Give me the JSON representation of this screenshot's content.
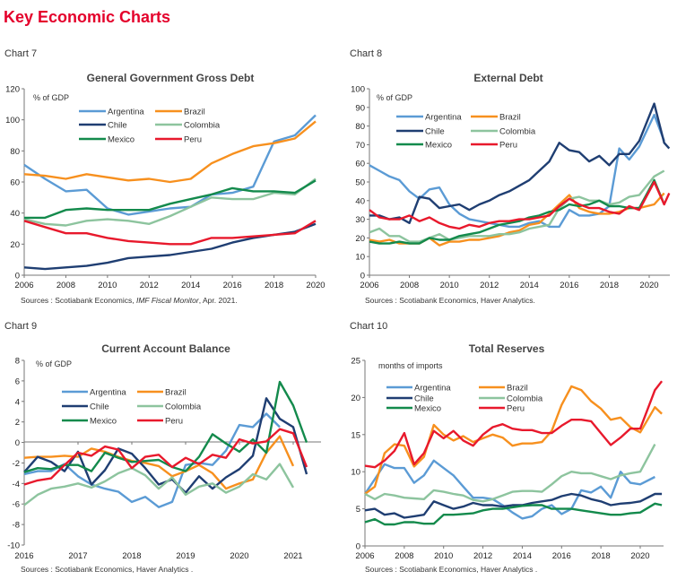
{
  "page_title": "Key Economic Charts",
  "colors": {
    "Argentina": "#5b9bd5",
    "Brazil": "#f7901e",
    "Chile": "#1f3e72",
    "Colombia": "#8dc49e",
    "Mexico": "#138a4c",
    "Peru": "#e8192c",
    "title": "#e4002b"
  },
  "chart_data": [
    {
      "id": "chart7",
      "label": "Chart 7",
      "type": "line",
      "title": "General Government Gross Debt",
      "unit": "% of GDP",
      "xlim": [
        2006,
        2020
      ],
      "ylim": [
        0,
        120
      ],
      "yticks": [
        0,
        20,
        40,
        60,
        80,
        100,
        120
      ],
      "xticks": [
        2006,
        2008,
        2010,
        2012,
        2014,
        2016,
        2018,
        2020
      ],
      "legend": "top-left",
      "grid": false,
      "sources": {
        "prefix": "Sources : Scotiabank Economics, ",
        "italic": "IMF Fiscal Monitor",
        "suffix": ", Apr. 2021."
      },
      "x": [
        2006,
        2007,
        2008,
        2009,
        2010,
        2011,
        2012,
        2013,
        2014,
        2015,
        2016,
        2017,
        2018,
        2019,
        2020
      ],
      "series": [
        {
          "name": "Argentina",
          "values": [
            71,
            62,
            54,
            55,
            43,
            39,
            41,
            43,
            44,
            52,
            53,
            57,
            86,
            90,
            103
          ]
        },
        {
          "name": "Brazil",
          "values": [
            65,
            64,
            62,
            65,
            63,
            61,
            62,
            60,
            62,
            72,
            78,
            83,
            85,
            88,
            99
          ]
        },
        {
          "name": "Chile",
          "values": [
            5,
            4,
            5,
            6,
            8,
            11,
            12,
            13,
            15,
            17,
            21,
            24,
            26,
            28,
            33
          ]
        },
        {
          "name": "Colombia",
          "values": [
            36,
            33,
            32,
            35,
            36,
            35,
            33,
            38,
            44,
            50,
            49,
            49,
            53,
            52,
            62
          ]
        },
        {
          "name": "Mexico",
          "values": [
            37,
            37,
            42,
            43,
            42,
            42,
            42,
            46,
            49,
            52,
            56,
            54,
            54,
            53,
            61
          ]
        },
        {
          "name": "Peru",
          "values": [
            35,
            31,
            27,
            27,
            24,
            22,
            21,
            20,
            20,
            24,
            24,
            25,
            26,
            27,
            35
          ]
        }
      ]
    },
    {
      "id": "chart8",
      "label": "Chart 8",
      "type": "line",
      "title": "External Debt",
      "unit": "% of GDP",
      "xlim": [
        2006,
        2021.2
      ],
      "ylim": [
        0,
        100
      ],
      "yticks": [
        0,
        10,
        20,
        30,
        40,
        50,
        60,
        70,
        80,
        90,
        100
      ],
      "xticks": [
        2006,
        2008,
        2010,
        2012,
        2014,
        2016,
        2018,
        2020
      ],
      "legend": "top-left",
      "grid": false,
      "sources": {
        "prefix": "Sources : Scotiabank Economics, Haver Analytics.",
        "italic": "",
        "suffix": ""
      },
      "x": [
        2006,
        2006.5,
        2007,
        2007.5,
        2008,
        2008.5,
        2009,
        2009.5,
        2010,
        2010.5,
        2011,
        2011.5,
        2012,
        2012.5,
        2013,
        2013.5,
        2014,
        2014.5,
        2015,
        2015.5,
        2016,
        2016.5,
        2017,
        2017.5,
        2018,
        2018.5,
        2019,
        2019.5,
        2020.25,
        2020.75,
        2021
      ],
      "series": [
        {
          "name": "Argentina",
          "values": [
            59,
            56,
            53,
            51,
            45,
            41,
            46,
            47,
            38,
            33,
            30,
            29,
            28,
            27,
            26,
            26,
            28,
            29,
            26,
            26,
            35,
            32,
            32,
            33,
            37,
            68,
            62,
            69,
            86,
            72,
            null
          ]
        },
        {
          "name": "Brazil",
          "values": [
            19,
            18,
            19,
            17,
            17,
            17,
            20,
            16,
            18,
            18,
            19,
            19,
            20,
            21,
            23,
            24,
            27,
            28,
            33,
            38,
            43,
            36,
            34,
            33,
            33,
            34,
            36,
            36,
            38,
            44,
            null
          ]
        },
        {
          "name": "Chile",
          "values": [
            32,
            32,
            30,
            31,
            28,
            42,
            41,
            36,
            37,
            38,
            35,
            38,
            40,
            43,
            45,
            48,
            51,
            56,
            61,
            71,
            67,
            66,
            61,
            64,
            59,
            65,
            65,
            72,
            92,
            71,
            68
          ]
        },
        {
          "name": "Colombia",
          "values": [
            23,
            25,
            21,
            21,
            18,
            18,
            20,
            22,
            19,
            20,
            21,
            21,
            21,
            22,
            22,
            23,
            25,
            26,
            27,
            36,
            41,
            42,
            40,
            40,
            38,
            39,
            42,
            43,
            53,
            56,
            null
          ]
        },
        {
          "name": "Mexico",
          "values": [
            18,
            17,
            17,
            18,
            17,
            17,
            20,
            19,
            19,
            21,
            22,
            23,
            25,
            27,
            28,
            29,
            31,
            32,
            34,
            35,
            38,
            37,
            38,
            40,
            37,
            37,
            36,
            36,
            51,
            38,
            null
          ]
        },
        {
          "name": "Peru",
          "values": [
            35,
            31,
            30,
            30,
            32,
            29,
            31,
            28,
            26,
            25,
            27,
            26,
            28,
            29,
            29,
            30,
            30,
            31,
            32,
            37,
            41,
            38,
            36,
            36,
            34,
            33,
            37,
            35,
            50,
            38,
            44
          ]
        }
      ]
    },
    {
      "id": "chart9",
      "label": "Chart 9",
      "type": "line",
      "title": "Current Account  Balance",
      "unit": "% of GDP",
      "xlim": [
        2016,
        2021.25
      ],
      "ylim": [
        -10,
        8
      ],
      "yticks": [
        -10,
        -8,
        -6,
        -4,
        -2,
        0,
        2,
        4,
        6,
        8
      ],
      "xticks": [
        2016,
        2017,
        2018,
        2019,
        2020,
        2021
      ],
      "legend": "top-left",
      "grid": false,
      "sources": {
        "prefix": "Sources : Scotiabank Economics, Haver Analytics .",
        "italic": "",
        "suffix": ""
      },
      "x": [
        2016,
        2016.25,
        2016.5,
        2016.75,
        2017,
        2017.25,
        2017.5,
        2017.75,
        2018,
        2018.25,
        2018.5,
        2018.75,
        2019,
        2019.25,
        2019.5,
        2019.75,
        2020,
        2020.25,
        2020.5,
        2020.75,
        2021,
        2021.25
      ],
      "series": [
        {
          "name": "Argentina",
          "values": [
            -3.1,
            -2.8,
            -2.8,
            -2.1,
            -3.3,
            -4.1,
            -4.5,
            -4.8,
            -5.8,
            -5.3,
            -6.3,
            -5.8,
            -2.2,
            -2.0,
            -2.2,
            -0.8,
            1.7,
            1.5,
            2.8,
            1.5,
            null,
            null
          ]
        },
        {
          "name": "Brazil",
          "values": [
            -1.5,
            -1.4,
            -1.4,
            -1.3,
            -1.4,
            -0.6,
            -0.9,
            -1.4,
            -1.8,
            -2.0,
            -2.3,
            -3.3,
            -2.8,
            -2.2,
            -3.0,
            -4.5,
            -4.0,
            -3.6,
            -1.0,
            0.6,
            -2.3,
            null
          ]
        },
        {
          "name": "Chile",
          "values": [
            -2.9,
            -1.4,
            -1.9,
            -2.8,
            -0.9,
            -4.1,
            -2.7,
            -0.6,
            -1.1,
            -2.5,
            -4.1,
            -3.6,
            -4.9,
            -3.3,
            -4.5,
            -3.4,
            -2.6,
            -1.3,
            4.3,
            2.3,
            1.5,
            -3.1
          ]
        },
        {
          "name": "Colombia",
          "values": [
            -6.1,
            -5.1,
            -4.5,
            -4.3,
            -4.0,
            -4.4,
            -3.8,
            -3.0,
            -2.5,
            -3.2,
            -4.5,
            -3.4,
            -5.1,
            -4.3,
            -4.0,
            -4.9,
            -4.3,
            -3.1,
            -3.6,
            -2.1,
            -4.4,
            null
          ]
        },
        {
          "name": "Mexico",
          "values": [
            -2.9,
            -2.5,
            -2.6,
            -2.2,
            -2.2,
            -2.8,
            -1.0,
            -1.5,
            -1.9,
            -1.8,
            -1.7,
            -2.4,
            -2.8,
            -1.4,
            0.8,
            -0.1,
            -0.9,
            0.3,
            -1.0,
            5.9,
            3.6,
            0.0
          ]
        },
        {
          "name": "Peru",
          "values": [
            -4.1,
            -3.7,
            -3.5,
            -2.2,
            -1.0,
            -1.3,
            -0.4,
            -0.7,
            -2.5,
            -1.4,
            -1.2,
            -2.4,
            -1.5,
            -2.1,
            -1.2,
            -1.5,
            0.3,
            -0.1,
            0.1,
            1.3,
            0.9,
            -2.4
          ]
        }
      ]
    },
    {
      "id": "chart10",
      "label": "Chart 10",
      "type": "line",
      "title": "Total Reserves",
      "unit": "months of imports",
      "xlim": [
        2006,
        2021.2
      ],
      "ylim": [
        0,
        25
      ],
      "yticks": [
        0,
        5,
        10,
        15,
        20,
        25
      ],
      "xticks": [
        2006,
        2008,
        2010,
        2012,
        2014,
        2016,
        2018,
        2020
      ],
      "legend": "top-left",
      "grid": false,
      "sources": {
        "prefix": "Sources : Scotiabank Economics, Haver Analytics .",
        "italic": "",
        "suffix": ""
      },
      "x": [
        2006,
        2006.5,
        2007,
        2007.5,
        2008,
        2008.5,
        2009,
        2009.5,
        2010,
        2010.5,
        2011,
        2011.5,
        2012,
        2012.5,
        2013,
        2013.5,
        2014,
        2014.5,
        2015,
        2015.5,
        2016,
        2016.5,
        2017,
        2017.5,
        2018,
        2018.5,
        2019,
        2019.5,
        2020,
        2020.75,
        2021.1
      ],
      "series": [
        {
          "name": "Argentina",
          "values": [
            7,
            9,
            11,
            10.5,
            10.5,
            8.5,
            9.5,
            11.5,
            10.5,
            9.5,
            8,
            6.5,
            6.5,
            6.3,
            5.5,
            4.5,
            3.7,
            4,
            5,
            5.5,
            4.3,
            5,
            7.5,
            7.2,
            8,
            6.5,
            10,
            8.5,
            8.3,
            9.3,
            null
          ]
        },
        {
          "name": "Brazil",
          "values": [
            7,
            8,
            12.5,
            13.7,
            13.5,
            10.7,
            12,
            16.3,
            15,
            14.2,
            14.8,
            14,
            14.5,
            15,
            14.6,
            13.5,
            13.8,
            13.8,
            14,
            15.5,
            19,
            21.5,
            21,
            19.5,
            18.5,
            17,
            17.3,
            16,
            15.3,
            18.7,
            17.8
          ]
        },
        {
          "name": "Chile",
          "values": [
            4.8,
            5,
            4.2,
            4.4,
            3.8,
            4,
            4.2,
            6,
            5.5,
            5,
            5.3,
            5.8,
            5.5,
            5.5,
            5.3,
            5.5,
            5.5,
            5.8,
            6,
            6.2,
            6.7,
            7,
            6.8,
            6.3,
            6,
            5.5,
            5.7,
            5.8,
            6,
            7,
            7
          ]
        },
        {
          "name": "Colombia",
          "values": [
            7,
            6.3,
            7,
            6.8,
            6.5,
            6.4,
            6.3,
            7.5,
            7.3,
            7,
            6.8,
            6.2,
            6,
            6.3,
            6.8,
            7.3,
            7.4,
            7.4,
            7.3,
            8.3,
            9.4,
            10,
            9.8,
            9.8,
            9.4,
            9,
            9.5,
            9.8,
            10,
            13.7,
            null
          ]
        },
        {
          "name": "Mexico",
          "values": [
            3.2,
            3.6,
            2.9,
            2.9,
            3.2,
            3.2,
            3,
            3,
            4.2,
            4.2,
            4.3,
            4.4,
            4.8,
            5,
            5,
            5.2,
            5.4,
            5.5,
            5.5,
            5,
            5,
            5,
            4.8,
            4.6,
            4.4,
            4.2,
            4.2,
            4.4,
            4.5,
            5.7,
            5.5
          ]
        },
        {
          "name": "Peru",
          "values": [
            10.8,
            10.6,
            11.5,
            12.8,
            15.2,
            11,
            12.5,
            15.5,
            14.5,
            15.5,
            14.2,
            13.5,
            15,
            16,
            16.4,
            15.8,
            15.6,
            15.6,
            15.2,
            15.2,
            16.2,
            17,
            17,
            16.8,
            15.2,
            13.6,
            14.6,
            15.8,
            15.8,
            21,
            22.2
          ]
        }
      ]
    }
  ]
}
